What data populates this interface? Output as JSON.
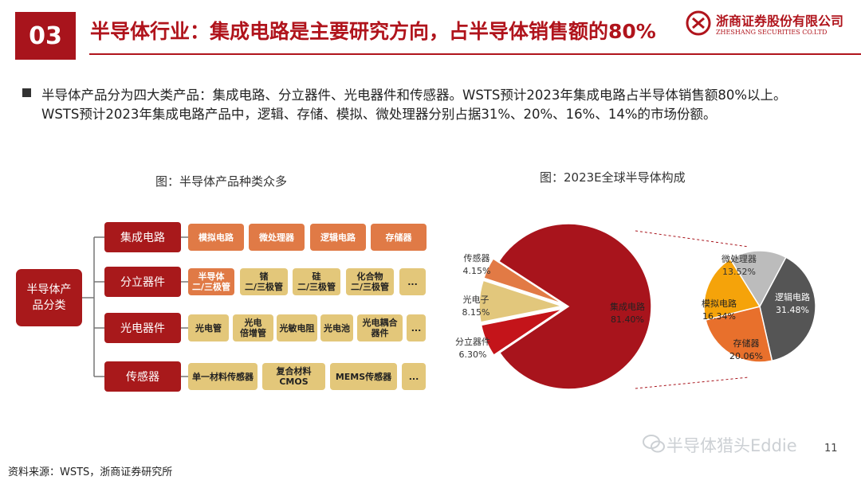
{
  "header": {
    "slide_number": "03",
    "title": "半导体行业：集成电路是主要研究方向，占半导体销售额的80%",
    "logo_cn": "浙商证券股份有限公司",
    "logo_en": "ZHESHANG SECURITIES CO.LTD"
  },
  "body": {
    "line1": "半导体产品分为四大类产品：集成电路、分立器件、光电器件和传感器。WSTS预计2023年集成电路占半导体销售额80%以上。",
    "line2": "WSTS预计2023年集成电路产品中，逻辑、存储、模拟、微处理器分别占据31%、20%、16%、14%的市场份额。"
  },
  "tree": {
    "caption": "图：半导体产品种类众多",
    "root": "半导体产\n品分类",
    "categories": [
      {
        "label": "集成电路",
        "items": [
          "模拟电路",
          "微处理器",
          "逻辑电路",
          "存储器"
        ]
      },
      {
        "label": "分立器件",
        "items": [
          "半导体\n二/三极管",
          "锗\n二/三极管",
          "硅\n二/三极管",
          "化合物\n二/三极管",
          "..."
        ]
      },
      {
        "label": "光电器件",
        "items": [
          "光电管",
          "光电\n倍增管",
          "光敏电阻",
          "光电池",
          "光电耦合\n器件",
          "..."
        ]
      },
      {
        "label": "传感器",
        "items": [
          "单一材料传感器",
          "复合材料CMOS",
          "MEMS传感器",
          "..."
        ]
      }
    ]
  },
  "chart_data": [
    {
      "type": "pie",
      "title": "图：2023E全球半导体构成",
      "slices": [
        {
          "name": "集成电路",
          "value": 81.4,
          "label": "81.40%",
          "color": "#a8141c"
        },
        {
          "name": "分立器件",
          "value": 6.3,
          "label": "6.30%",
          "color": "#c4141a"
        },
        {
          "name": "光电子",
          "value": 8.15,
          "label": "8.15%",
          "color": "#e2c77c"
        },
        {
          "name": "传感器",
          "value": 4.15,
          "label": "4.15%",
          "color": "#e27a45"
        }
      ]
    },
    {
      "type": "pie",
      "slices": [
        {
          "name": "逻辑电路",
          "value": 31.48,
          "label": "31.48%",
          "color": "#555555"
        },
        {
          "name": "存储器",
          "value": 20.06,
          "label": "20.06%",
          "color": "#e8702c"
        },
        {
          "name": "模拟电路",
          "value": 16.34,
          "label": "16.34%",
          "color": "#f5a30a"
        },
        {
          "name": "微处理器",
          "value": 13.52,
          "label": "13.52%",
          "color": "#bcbcbc"
        }
      ]
    }
  ],
  "footer": {
    "watermark": "半导体猎头Eddie",
    "page_number": "11",
    "source": "资料来源：WSTS，浙商证券研究所"
  },
  "colors": {
    "brand": "#a8141c",
    "orange_box": "#e07a46",
    "tan_box": "#e3c77a"
  }
}
